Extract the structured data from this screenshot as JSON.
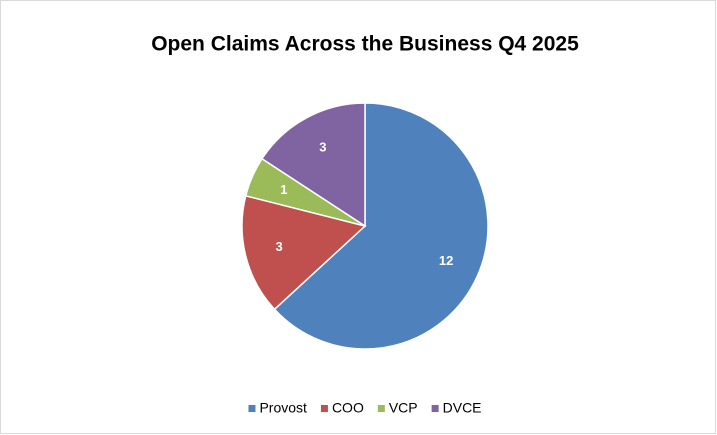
{
  "chart_data": {
    "type": "pie",
    "title": "Open Claims Across the Business Q4 2025",
    "categories": [
      "Provost",
      "COO",
      "VCP",
      "DVCE"
    ],
    "values": [
      12,
      3,
      1,
      3
    ],
    "colors": [
      "#4f81bd",
      "#c0504d",
      "#9bbb59",
      "#8064a2"
    ],
    "legend": "bottom"
  }
}
